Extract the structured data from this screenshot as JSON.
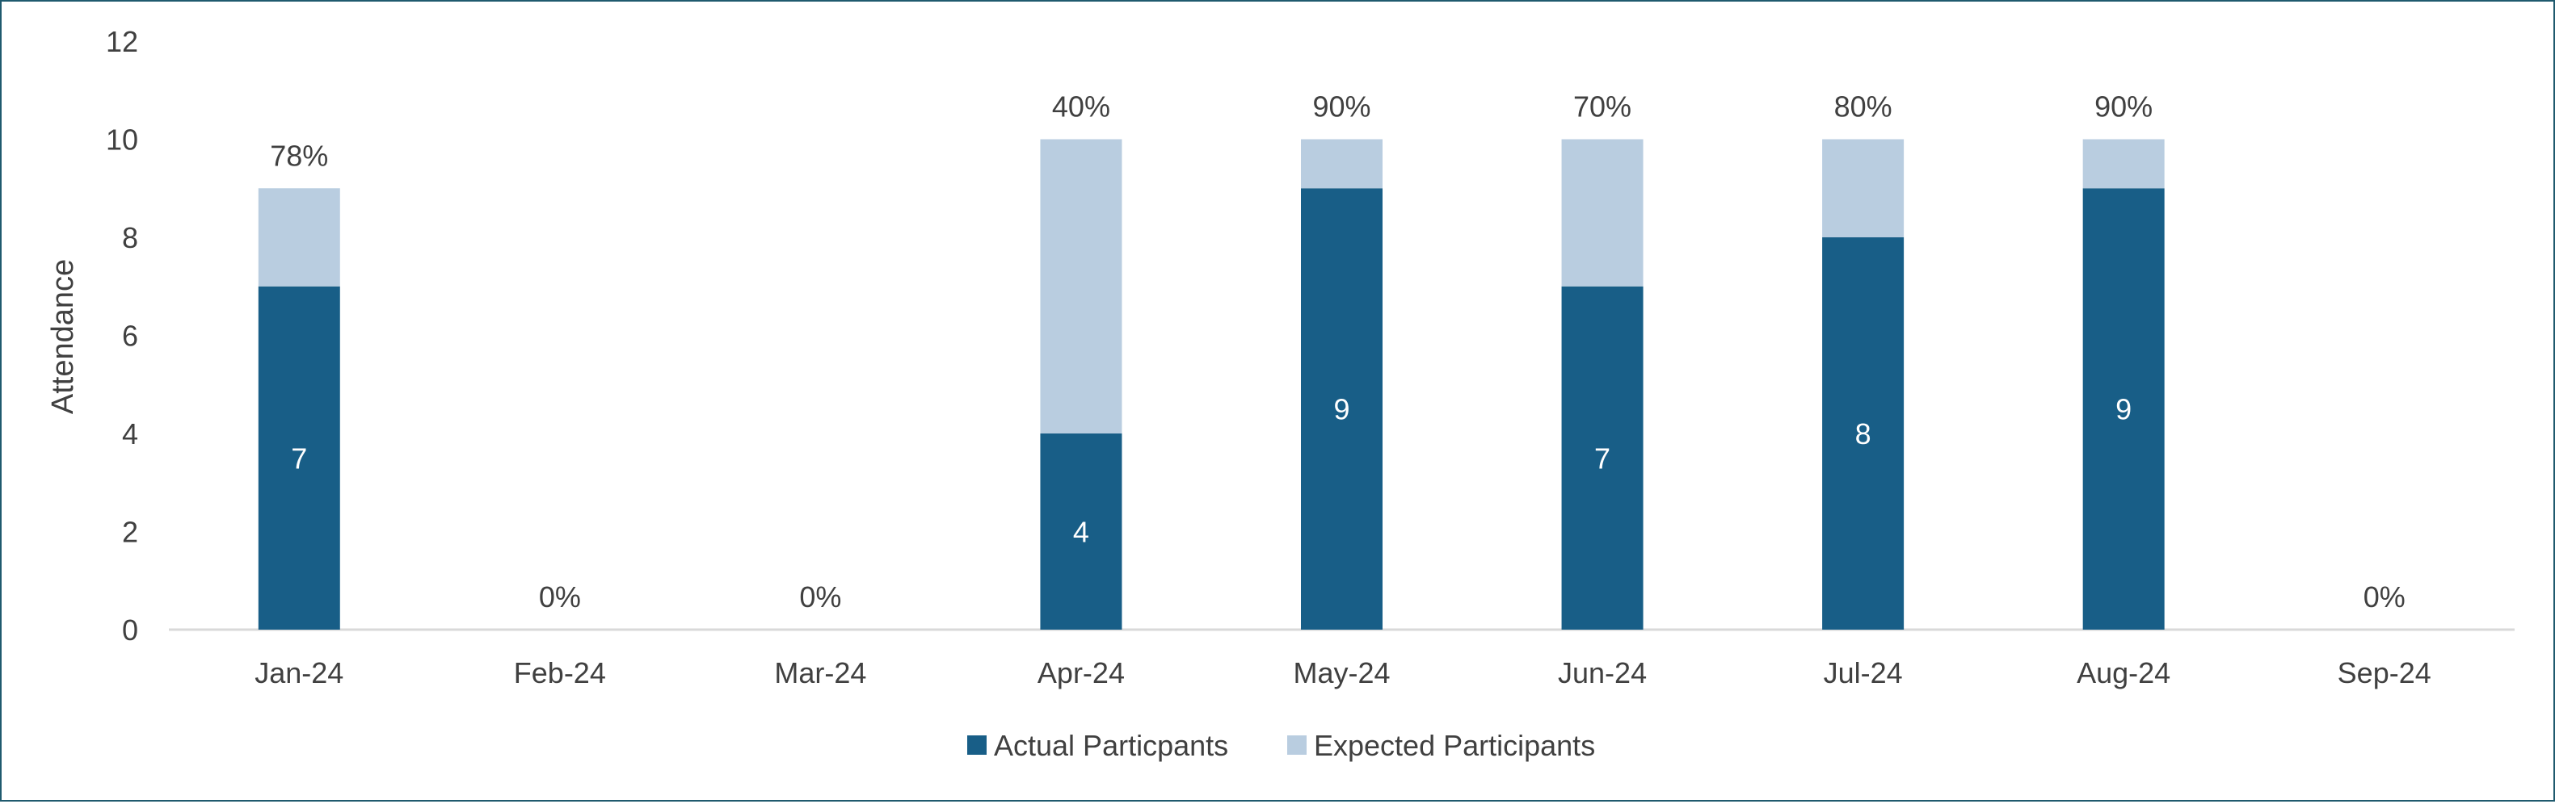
{
  "chart_data": {
    "type": "bar",
    "stacked": true,
    "categories": [
      "Jan-24",
      "Feb-24",
      "Mar-24",
      "Apr-24",
      "May-24",
      "Jun-24",
      "Jul-24",
      "Aug-24",
      "Sep-24"
    ],
    "series": [
      {
        "name": "Actual Particpants",
        "values": [
          7,
          0,
          0,
          4,
          9,
          7,
          8,
          9,
          0
        ],
        "color": "#185e87"
      },
      {
        "name": "Expected Participants",
        "values": [
          2,
          0,
          0,
          6,
          1,
          3,
          2,
          1,
          0
        ],
        "color": "#b9cde0"
      }
    ],
    "inner_labels": [
      "7",
      "",
      "",
      "4",
      "9",
      "7",
      "8",
      "9",
      ""
    ],
    "top_labels": [
      "78%",
      "0%",
      "0%",
      "40%",
      "90%",
      "70%",
      "80%",
      "90%",
      "0%"
    ],
    "title": "",
    "xlabel": "",
    "ylabel": "Attendance",
    "ylim": [
      0,
      12
    ],
    "yticks": [
      "0",
      "2",
      "4",
      "6",
      "8",
      "10",
      "12"
    ],
    "grid": false,
    "legend_position": "bottom",
    "colors": {
      "axis": "#d9d9d9",
      "text": "#404040",
      "border": "#1f5a6e"
    }
  }
}
